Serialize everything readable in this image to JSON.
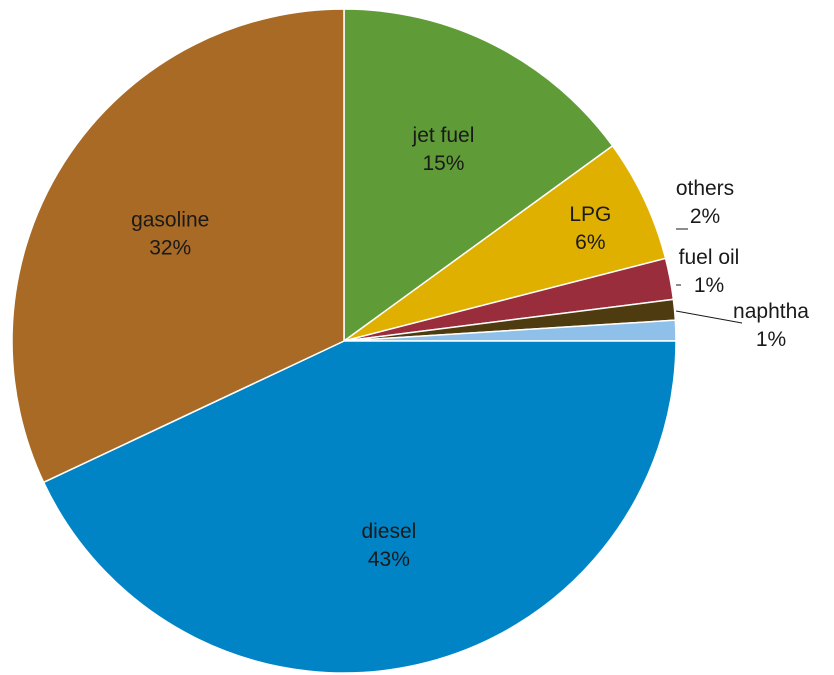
{
  "chart_data": {
    "type": "pie",
    "start_angle_deg": 0,
    "direction": "clockwise",
    "slices": [
      {
        "name": "jet fuel",
        "value": 15,
        "label": "15%",
        "color": "#5f9b37",
        "label_placement": "inside"
      },
      {
        "name": "LPG",
        "value": 6,
        "label": "6%",
        "color": "#e0b000",
        "label_placement": "inside"
      },
      {
        "name": "others",
        "value": 2,
        "label": "2%",
        "color": "#9a2d3c",
        "label_placement": "outside"
      },
      {
        "name": "fuel oil",
        "value": 1,
        "label": "1%",
        "color": "#4f3b10",
        "label_placement": "outside"
      },
      {
        "name": "naphtha",
        "value": 1,
        "label": "1%",
        "color": "#8fc0ea",
        "label_placement": "outside"
      },
      {
        "name": "diesel",
        "value": 43,
        "label": "43%",
        "color": "#0184c5",
        "label_placement": "inside"
      },
      {
        "name": "gasoline",
        "value": 32,
        "label": "32%",
        "color": "#a86a25",
        "label_placement": "inside"
      }
    ]
  }
}
